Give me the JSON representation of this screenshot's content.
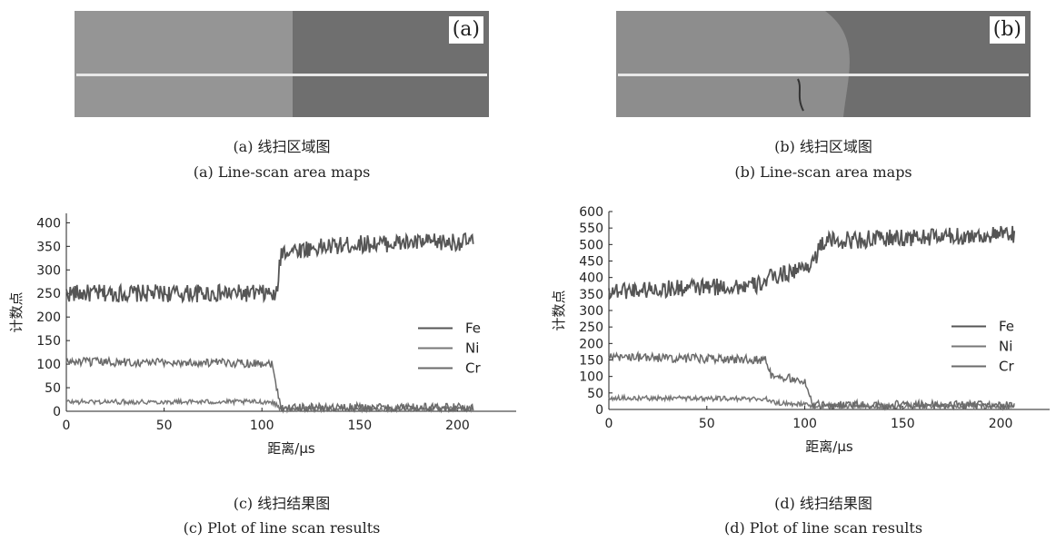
{
  "panels": {
    "a": {
      "tag": "(a)",
      "cap_cn": "(a) 线扫区域图",
      "cap_en": "(a) Line-scan area maps"
    },
    "b": {
      "tag": "(b)",
      "cap_cn": "(b) 线扫区域图",
      "cap_en": "(b) Line-scan area maps"
    },
    "c": {
      "cap_cn": "(c) 线扫结果图",
      "cap_en": "(c) Plot of line scan results"
    },
    "d": {
      "cap_cn": "(d) 线扫结果图",
      "cap_en": "(d) Plot of line scan results"
    }
  },
  "colors": {
    "fe": "#555555",
    "ni": "#777777",
    "cr": "#6a6a6a",
    "axis": "#222222"
  },
  "chart_data": [
    {
      "type": "line",
      "xlabel": "距离/μs",
      "ylabel": "计数点",
      "xlim": [
        0,
        230
      ],
      "ylim": [
        0,
        420
      ],
      "xticks": [
        0,
        50,
        100,
        150,
        200
      ],
      "yticks": [
        0,
        50,
        100,
        150,
        200,
        250,
        300,
        350,
        400
      ],
      "legend_position": "right-middle",
      "series": [
        {
          "name": "Fe",
          "x": [
            0,
            105,
            107,
            110,
            150,
            208
          ],
          "y": [
            250,
            250,
            235,
            340,
            355,
            360
          ]
        },
        {
          "name": "Ni",
          "x": [
            0,
            105,
            107,
            110,
            208
          ],
          "y": [
            20,
            20,
            15,
            5,
            5
          ]
        },
        {
          "name": "Cr",
          "x": [
            0,
            105,
            107,
            110,
            208
          ],
          "y": [
            105,
            102,
            60,
            8,
            8
          ]
        }
      ]
    },
    {
      "type": "line",
      "xlabel": "距离/μs",
      "ylabel": "计数点",
      "xlim": [
        0,
        225
      ],
      "ylim": [
        0,
        600
      ],
      "xticks": [
        0,
        50,
        100,
        150,
        200
      ],
      "yticks": [
        0,
        50,
        100,
        150,
        200,
        250,
        300,
        350,
        400,
        450,
        500,
        550,
        600
      ],
      "legend_position": "right-middle",
      "series": [
        {
          "name": "Fe",
          "x": [
            0,
            75,
            83,
            100,
            104,
            110,
            150,
            207
          ],
          "y": [
            360,
            375,
            400,
            430,
            450,
            510,
            520,
            530
          ]
        },
        {
          "name": "Ni",
          "x": [
            0,
            80,
            85,
            100,
            104,
            207
          ],
          "y": [
            35,
            32,
            20,
            15,
            10,
            10
          ]
        },
        {
          "name": "Cr",
          "x": [
            0,
            80,
            83,
            100,
            104,
            207
          ],
          "y": [
            160,
            150,
            100,
            90,
            15,
            12
          ]
        }
      ]
    }
  ]
}
